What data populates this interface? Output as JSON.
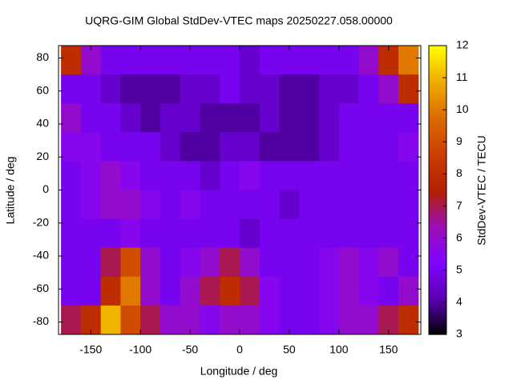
{
  "chart_data": {
    "type": "heatmap",
    "title": "UQRG-GIM Global StdDev-VTEC maps 20250227.058.00000",
    "xlabel": "Longitude / deg",
    "ylabel": "Latitude / deg",
    "colorbar_label": "StdDev-VTEC / TECU",
    "x": [
      -170,
      -150,
      -130,
      -110,
      -90,
      -70,
      -50,
      -30,
      -10,
      10,
      30,
      50,
      70,
      90,
      110,
      130,
      150,
      170
    ],
    "y": [
      78.75,
      61.25,
      43.75,
      26.25,
      8.75,
      -8.75,
      -26.25,
      -43.75,
      -61.25,
      -78.75
    ],
    "z": [
      [
        8,
        6,
        5,
        5,
        5,
        5,
        5,
        5,
        5,
        4.5,
        5,
        5,
        5,
        5,
        5,
        6,
        8,
        10
      ],
      [
        5,
        5,
        4.5,
        4,
        4,
        4,
        4.5,
        4.5,
        5,
        4.5,
        4.5,
        4,
        4,
        4.5,
        4.5,
        5,
        6,
        8
      ],
      [
        6,
        5,
        5,
        4.5,
        4,
        4.5,
        4.5,
        4,
        4,
        4,
        4.5,
        4,
        4,
        4.5,
        5,
        5,
        5,
        5
      ],
      [
        5.5,
        5.5,
        5,
        5,
        5,
        4.5,
        4,
        4,
        4.5,
        4.5,
        4,
        4,
        4,
        4.5,
        5,
        5,
        5,
        5.5
      ],
      [
        5,
        5.5,
        6,
        5.5,
        5,
        5,
        5,
        4.5,
        5,
        5.5,
        5,
        5,
        5,
        5,
        5,
        5,
        5,
        5
      ],
      [
        5,
        5.5,
        6,
        6,
        5.5,
        5,
        5.5,
        5,
        5,
        5,
        5,
        4.5,
        5,
        5,
        5,
        5,
        5,
        5
      ],
      [
        5,
        5,
        5,
        5.5,
        5,
        5,
        5,
        5,
        5,
        4.5,
        5,
        5,
        5,
        5,
        5,
        5,
        5,
        5
      ],
      [
        5,
        5,
        7,
        9,
        6,
        5,
        5.5,
        6,
        7,
        6,
        5,
        5,
        5,
        5.5,
        6,
        5.5,
        6,
        5
      ],
      [
        5,
        5,
        8,
        10,
        6,
        5,
        6,
        7,
        8,
        7,
        5.5,
        5,
        5,
        5.5,
        6,
        5.5,
        5,
        6
      ],
      [
        7,
        8,
        11,
        9,
        7,
        6,
        6,
        5.5,
        6,
        6,
        5.5,
        5,
        5,
        5.5,
        6,
        6,
        7,
        8
      ]
    ],
    "xlim": [
      -182.5,
      182.5
    ],
    "xticks": [
      -150,
      -100,
      -50,
      0,
      50,
      100,
      150
    ],
    "ylim": [
      -87.5,
      87.5
    ],
    "yticks": [
      -80,
      -60,
      -40,
      -20,
      0,
      20,
      40,
      60,
      80
    ],
    "zlim": [
      3,
      12
    ],
    "zticks": [
      3,
      4,
      5,
      6,
      7,
      8,
      9,
      10,
      11,
      12
    ],
    "colormap": [
      "#000000",
      "#5a00b4",
      "#8004ff",
      "#9c0eb4",
      "#b42000",
      "#ca3e00",
      "#dd6b00",
      "#eeab00",
      "#ffff00"
    ]
  }
}
